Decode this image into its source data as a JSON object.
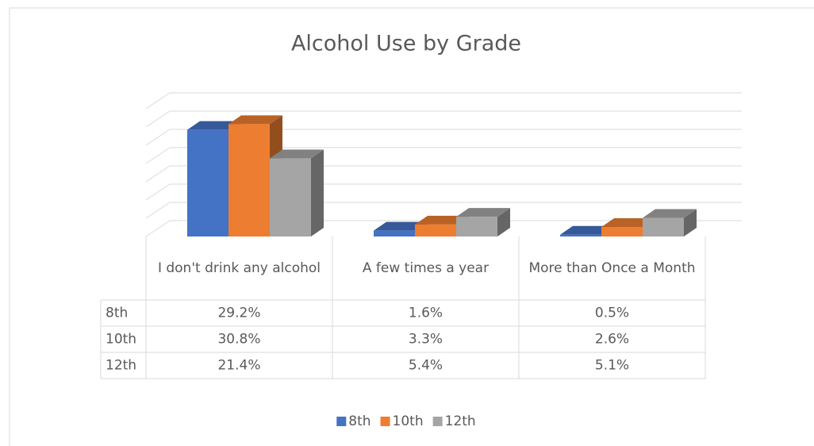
{
  "chart_data": {
    "type": "bar3d",
    "title": "Alcohol Use by Grade",
    "categories": [
      "I don't drink any alcohol",
      "A few times a year",
      "More than Once a Month"
    ],
    "series": [
      {
        "name": "8th",
        "color": "#4472c4",
        "values": [
          29.2,
          1.6,
          0.5
        ],
        "value_labels": [
          "29.2%",
          "1.6%",
          "0.5%"
        ]
      },
      {
        "name": "10th",
        "color": "#ed7d31",
        "values": [
          30.8,
          3.3,
          2.6
        ],
        "value_labels": [
          "30.8%",
          "3.3%",
          "2.6%"
        ]
      },
      {
        "name": "12th",
        "color": "#a5a5a5",
        "values": [
          21.4,
          5.4,
          5.1
        ],
        "value_labels": [
          "21.4%",
          "5.4%",
          "5.1%"
        ]
      }
    ],
    "ylim": [
      0,
      35
    ],
    "yticks": [
      0,
      5,
      10,
      15,
      20,
      25,
      30,
      35
    ],
    "grid": true,
    "legend": "bottom"
  }
}
